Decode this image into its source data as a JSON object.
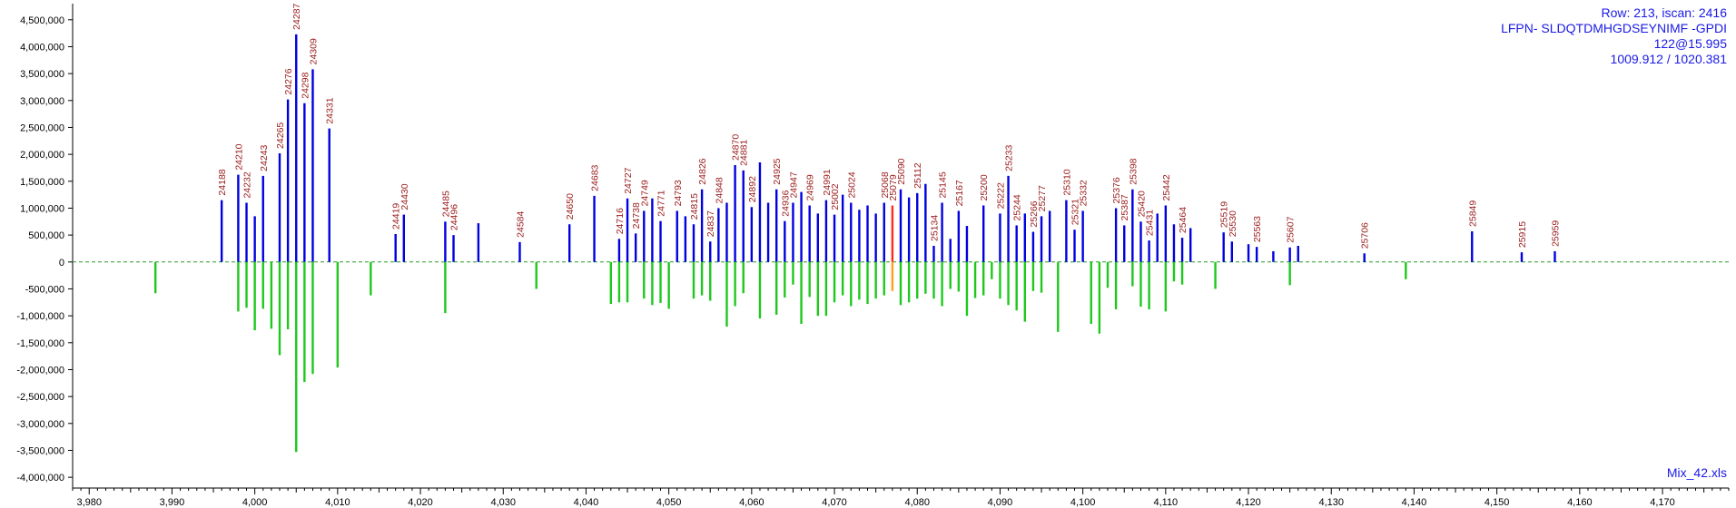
{
  "info": {
    "line1": "Row: 213, iscan: 2416",
    "line2": "LFPN- SLDQTDMHGDSEYNIMF -GPDI",
    "line3": "122@15.995",
    "line4": "1009.912 / 1020.381"
  },
  "file_name": "Mix_42.xls",
  "colors": {
    "upper": "#0000e0",
    "lower": "#1ec81e",
    "highlight_upper": "#ff2a1a",
    "highlight_lower": "#ffa020",
    "label": "#9b1c1c",
    "baseline": "#2a9a2a",
    "axis": "#000000"
  },
  "chart_data": {
    "type": "bar",
    "title": "",
    "xlabel": "",
    "ylabel": "",
    "xlim": [
      3978,
      4178
    ],
    "ylim": [
      -4200000,
      4800000
    ],
    "grid": false,
    "x_ticks": [
      "3,980",
      "3,990",
      "4,000",
      "4,010",
      "4,020",
      "4,030",
      "4,040",
      "4,050",
      "4,060",
      "4,070",
      "4,080",
      "4,090",
      "4,100",
      "4,110",
      "4,120",
      "4,130",
      "4,140",
      "4,150",
      "4,160",
      "4,170"
    ],
    "y_ticks": [
      "4,500,000",
      "4,000,000",
      "3,500,000",
      "3,000,000",
      "2,500,000",
      "2,000,000",
      "1,500,000",
      "1,000,000",
      "500,000",
      "0",
      "-500,000",
      "-1,000,000",
      "-1,500,000",
      "-2,000,000",
      "-2,500,000",
      "-3,000,000",
      "-3,500,000",
      "-4,000,000"
    ],
    "upper_series": [
      {
        "x": 3996,
        "y": 1150000,
        "label": "24188"
      },
      {
        "x": 3998,
        "y": 1620000,
        "label": "24210"
      },
      {
        "x": 3999,
        "y": 1100000,
        "label": "24232"
      },
      {
        "x": 4000,
        "y": 850000,
        "label": ""
      },
      {
        "x": 4001,
        "y": 1600000,
        "label": "24243"
      },
      {
        "x": 4003,
        "y": 2020000,
        "label": "24265"
      },
      {
        "x": 4004,
        "y": 3020000,
        "label": "24276"
      },
      {
        "x": 4005,
        "y": 4230000,
        "label": "24287"
      },
      {
        "x": 4006,
        "y": 2950000,
        "label": "24298"
      },
      {
        "x": 4007,
        "y": 3580000,
        "label": "24309"
      },
      {
        "x": 4009,
        "y": 2480000,
        "label": "24331"
      },
      {
        "x": 4017,
        "y": 520000,
        "label": "24419"
      },
      {
        "x": 4018,
        "y": 880000,
        "label": "24430"
      },
      {
        "x": 4023,
        "y": 750000,
        "label": "24485"
      },
      {
        "x": 4024,
        "y": 500000,
        "label": "24496"
      },
      {
        "x": 4027,
        "y": 720000,
        "label": ""
      },
      {
        "x": 4032,
        "y": 370000,
        "label": "24584"
      },
      {
        "x": 4038,
        "y": 700000,
        "label": "24650"
      },
      {
        "x": 4041,
        "y": 1230000,
        "label": "24683"
      },
      {
        "x": 4044,
        "y": 430000,
        "label": "24716"
      },
      {
        "x": 4045,
        "y": 1180000,
        "label": "24727"
      },
      {
        "x": 4046,
        "y": 530000,
        "label": "24738"
      },
      {
        "x": 4047,
        "y": 950000,
        "label": "24749"
      },
      {
        "x": 4048,
        "y": 1180000,
        "label": ""
      },
      {
        "x": 4049,
        "y": 760000,
        "label": "24771"
      },
      {
        "x": 4051,
        "y": 950000,
        "label": "24793"
      },
      {
        "x": 4052,
        "y": 850000,
        "label": ""
      },
      {
        "x": 4053,
        "y": 700000,
        "label": "24815"
      },
      {
        "x": 4054,
        "y": 1350000,
        "label": "24826"
      },
      {
        "x": 4055,
        "y": 380000,
        "label": "24837"
      },
      {
        "x": 4056,
        "y": 1000000,
        "label": "24848"
      },
      {
        "x": 4057,
        "y": 1100000,
        "label": ""
      },
      {
        "x": 4058,
        "y": 1800000,
        "label": "24870"
      },
      {
        "x": 4059,
        "y": 1700000,
        "label": "24881"
      },
      {
        "x": 4060,
        "y": 1020000,
        "label": "24892"
      },
      {
        "x": 4061,
        "y": 1850000,
        "label": ""
      },
      {
        "x": 4062,
        "y": 1100000,
        "label": ""
      },
      {
        "x": 4063,
        "y": 1350000,
        "label": "24925"
      },
      {
        "x": 4064,
        "y": 760000,
        "label": "24936"
      },
      {
        "x": 4065,
        "y": 1100000,
        "label": "24947"
      },
      {
        "x": 4066,
        "y": 1300000,
        "label": ""
      },
      {
        "x": 4067,
        "y": 1050000,
        "label": "24969"
      },
      {
        "x": 4068,
        "y": 900000,
        "label": ""
      },
      {
        "x": 4069,
        "y": 1150000,
        "label": "24991"
      },
      {
        "x": 4070,
        "y": 880000,
        "label": "25002"
      },
      {
        "x": 4071,
        "y": 1250000,
        "label": ""
      },
      {
        "x": 4072,
        "y": 1100000,
        "label": "25024"
      },
      {
        "x": 4073,
        "y": 970000,
        "label": ""
      },
      {
        "x": 4074,
        "y": 1050000,
        "label": ""
      },
      {
        "x": 4075,
        "y": 900000,
        "label": ""
      },
      {
        "x": 4076,
        "y": 1100000,
        "label": "25068"
      },
      {
        "x": 4077,
        "y": 1050000,
        "label": "25079",
        "highlight": true
      },
      {
        "x": 4078,
        "y": 1350000,
        "label": "25090"
      },
      {
        "x": 4079,
        "y": 1200000,
        "label": ""
      },
      {
        "x": 4080,
        "y": 1280000,
        "label": "25112"
      },
      {
        "x": 4081,
        "y": 1450000,
        "label": ""
      },
      {
        "x": 4082,
        "y": 300000,
        "label": "25134"
      },
      {
        "x": 4083,
        "y": 1100000,
        "label": "25145"
      },
      {
        "x": 4084,
        "y": 430000,
        "label": ""
      },
      {
        "x": 4085,
        "y": 950000,
        "label": "25167"
      },
      {
        "x": 4086,
        "y": 670000,
        "label": ""
      },
      {
        "x": 4088,
        "y": 1050000,
        "label": "25200"
      },
      {
        "x": 4090,
        "y": 900000,
        "label": "25222"
      },
      {
        "x": 4091,
        "y": 1600000,
        "label": "25233"
      },
      {
        "x": 4092,
        "y": 680000,
        "label": "25244"
      },
      {
        "x": 4093,
        "y": 900000,
        "label": ""
      },
      {
        "x": 4094,
        "y": 560000,
        "label": "25266"
      },
      {
        "x": 4095,
        "y": 850000,
        "label": "25277"
      },
      {
        "x": 4096,
        "y": 950000,
        "label": ""
      },
      {
        "x": 4098,
        "y": 1150000,
        "label": "25310"
      },
      {
        "x": 4099,
        "y": 600000,
        "label": "25321"
      },
      {
        "x": 4100,
        "y": 950000,
        "label": "25332"
      },
      {
        "x": 4104,
        "y": 1000000,
        "label": "25376"
      },
      {
        "x": 4105,
        "y": 680000,
        "label": "25387"
      },
      {
        "x": 4106,
        "y": 1350000,
        "label": "25398"
      },
      {
        "x": 4107,
        "y": 750000,
        "label": "25420"
      },
      {
        "x": 4108,
        "y": 400000,
        "label": "25431"
      },
      {
        "x": 4109,
        "y": 900000,
        "label": ""
      },
      {
        "x": 4110,
        "y": 1050000,
        "label": "25442"
      },
      {
        "x": 4111,
        "y": 700000,
        "label": ""
      },
      {
        "x": 4112,
        "y": 450000,
        "label": "25464"
      },
      {
        "x": 4113,
        "y": 630000,
        "label": ""
      },
      {
        "x": 4117,
        "y": 550000,
        "label": "25519"
      },
      {
        "x": 4118,
        "y": 380000,
        "label": "25530"
      },
      {
        "x": 4120,
        "y": 330000,
        "label": ""
      },
      {
        "x": 4121,
        "y": 280000,
        "label": "25563"
      },
      {
        "x": 4123,
        "y": 200000,
        "label": ""
      },
      {
        "x": 4125,
        "y": 270000,
        "label": "25607"
      },
      {
        "x": 4126,
        "y": 300000,
        "label": ""
      },
      {
        "x": 4134,
        "y": 160000,
        "label": "25706"
      },
      {
        "x": 4147,
        "y": 570000,
        "label": "25849"
      },
      {
        "x": 4153,
        "y": 180000,
        "label": "25915"
      },
      {
        "x": 4157,
        "y": 200000,
        "label": "25959"
      }
    ],
    "lower_series": [
      {
        "x": 3988,
        "y": -580000
      },
      {
        "x": 3998,
        "y": -920000
      },
      {
        "x": 3999,
        "y": -850000
      },
      {
        "x": 4000,
        "y": -1270000
      },
      {
        "x": 4001,
        "y": -870000
      },
      {
        "x": 4002,
        "y": -1240000
      },
      {
        "x": 4003,
        "y": -1730000
      },
      {
        "x": 4004,
        "y": -1250000
      },
      {
        "x": 4005,
        "y": -3530000
      },
      {
        "x": 4006,
        "y": -2230000
      },
      {
        "x": 4007,
        "y": -2080000
      },
      {
        "x": 4010,
        "y": -1960000
      },
      {
        "x": 4014,
        "y": -620000
      },
      {
        "x": 4023,
        "y": -950000
      },
      {
        "x": 4034,
        "y": -500000
      },
      {
        "x": 4043,
        "y": -780000
      },
      {
        "x": 4044,
        "y": -750000
      },
      {
        "x": 4045,
        "y": -750000
      },
      {
        "x": 4047,
        "y": -680000
      },
      {
        "x": 4048,
        "y": -800000
      },
      {
        "x": 4049,
        "y": -760000
      },
      {
        "x": 4050,
        "y": -870000
      },
      {
        "x": 4053,
        "y": -680000
      },
      {
        "x": 4054,
        "y": -620000
      },
      {
        "x": 4055,
        "y": -720000
      },
      {
        "x": 4057,
        "y": -1200000
      },
      {
        "x": 4058,
        "y": -820000
      },
      {
        "x": 4059,
        "y": -580000
      },
      {
        "x": 4061,
        "y": -1050000
      },
      {
        "x": 4063,
        "y": -980000
      },
      {
        "x": 4064,
        "y": -660000
      },
      {
        "x": 4065,
        "y": -420000
      },
      {
        "x": 4066,
        "y": -1150000
      },
      {
        "x": 4067,
        "y": -650000
      },
      {
        "x": 4068,
        "y": -1000000
      },
      {
        "x": 4069,
        "y": -1000000
      },
      {
        "x": 4070,
        "y": -750000
      },
      {
        "x": 4071,
        "y": -620000
      },
      {
        "x": 4072,
        "y": -820000
      },
      {
        "x": 4073,
        "y": -700000
      },
      {
        "x": 4074,
        "y": -780000
      },
      {
        "x": 4075,
        "y": -680000
      },
      {
        "x": 4076,
        "y": -620000
      },
      {
        "x": 4077,
        "y": -540000,
        "highlight": true
      },
      {
        "x": 4078,
        "y": -800000
      },
      {
        "x": 4079,
        "y": -750000
      },
      {
        "x": 4080,
        "y": -680000
      },
      {
        "x": 4081,
        "y": -590000
      },
      {
        "x": 4082,
        "y": -680000
      },
      {
        "x": 4083,
        "y": -820000
      },
      {
        "x": 4084,
        "y": -500000
      },
      {
        "x": 4085,
        "y": -550000
      },
      {
        "x": 4086,
        "y": -1000000
      },
      {
        "x": 4087,
        "y": -670000
      },
      {
        "x": 4088,
        "y": -620000
      },
      {
        "x": 4089,
        "y": -320000
      },
      {
        "x": 4090,
        "y": -680000
      },
      {
        "x": 4091,
        "y": -800000
      },
      {
        "x": 4092,
        "y": -900000
      },
      {
        "x": 4093,
        "y": -1110000
      },
      {
        "x": 4094,
        "y": -540000
      },
      {
        "x": 4095,
        "y": -570000
      },
      {
        "x": 4097,
        "y": -1300000
      },
      {
        "x": 4101,
        "y": -1150000
      },
      {
        "x": 4102,
        "y": -1330000
      },
      {
        "x": 4103,
        "y": -480000
      },
      {
        "x": 4104,
        "y": -880000
      },
      {
        "x": 4106,
        "y": -450000
      },
      {
        "x": 4107,
        "y": -830000
      },
      {
        "x": 4108,
        "y": -880000
      },
      {
        "x": 4110,
        "y": -920000
      },
      {
        "x": 4111,
        "y": -360000
      },
      {
        "x": 4112,
        "y": -420000
      },
      {
        "x": 4116,
        "y": -500000
      },
      {
        "x": 4125,
        "y": -430000
      },
      {
        "x": 4139,
        "y": -320000
      }
    ]
  }
}
